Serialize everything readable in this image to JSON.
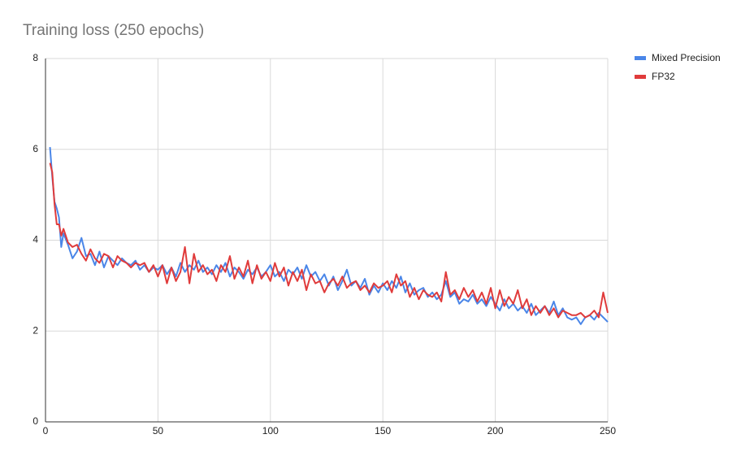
{
  "chart_data": {
    "type": "line",
    "title": "Training loss (250 epochs)",
    "x": [
      2,
      3,
      4,
      5,
      6,
      7,
      8,
      10,
      12,
      14,
      16,
      18,
      20,
      22,
      24,
      26,
      28,
      30,
      32,
      34,
      36,
      38,
      40,
      42,
      44,
      46,
      48,
      50,
      52,
      54,
      56,
      58,
      60,
      62,
      64,
      66,
      68,
      70,
      72,
      74,
      76,
      78,
      80,
      82,
      84,
      86,
      88,
      90,
      92,
      94,
      96,
      98,
      100,
      102,
      104,
      106,
      108,
      110,
      112,
      114,
      116,
      118,
      120,
      122,
      124,
      126,
      128,
      130,
      132,
      134,
      136,
      138,
      140,
      142,
      144,
      146,
      148,
      150,
      152,
      154,
      156,
      158,
      160,
      162,
      164,
      166,
      168,
      170,
      172,
      174,
      176,
      178,
      180,
      182,
      184,
      186,
      188,
      190,
      192,
      194,
      196,
      198,
      200,
      202,
      204,
      206,
      208,
      210,
      212,
      214,
      216,
      218,
      220,
      222,
      224,
      226,
      228,
      230,
      232,
      234,
      236,
      238,
      240,
      242,
      244,
      246,
      248,
      250
    ],
    "series": [
      {
        "name": "Mixed Precision",
        "color": "#4a86e8",
        "values": [
          6.05,
          5.4,
          4.85,
          4.7,
          4.5,
          3.85,
          4.15,
          3.9,
          3.6,
          3.75,
          4.05,
          3.65,
          3.7,
          3.45,
          3.75,
          3.4,
          3.65,
          3.55,
          3.45,
          3.6,
          3.5,
          3.45,
          3.55,
          3.35,
          3.45,
          3.3,
          3.4,
          3.35,
          3.45,
          3.25,
          3.4,
          3.2,
          3.5,
          3.3,
          3.45,
          3.35,
          3.55,
          3.3,
          3.4,
          3.25,
          3.45,
          3.3,
          3.5,
          3.2,
          3.4,
          3.3,
          3.15,
          3.35,
          3.25,
          3.4,
          3.2,
          3.3,
          3.45,
          3.2,
          3.3,
          3.1,
          3.35,
          3.25,
          3.4,
          3.15,
          3.45,
          3.2,
          3.3,
          3.1,
          3.25,
          3.0,
          3.2,
          2.9,
          3.1,
          3.35,
          3.0,
          3.1,
          2.95,
          3.15,
          2.8,
          3.0,
          2.85,
          3.05,
          2.9,
          3.1,
          2.95,
          3.2,
          2.85,
          3.05,
          2.8,
          2.9,
          2.95,
          2.75,
          2.85,
          2.7,
          2.8,
          3.1,
          2.75,
          2.85,
          2.6,
          2.7,
          2.65,
          2.8,
          2.6,
          2.7,
          2.55,
          2.75,
          2.6,
          2.45,
          2.7,
          2.5,
          2.6,
          2.45,
          2.55,
          2.4,
          2.6,
          2.35,
          2.45,
          2.55,
          2.4,
          2.65,
          2.35,
          2.5,
          2.3,
          2.25,
          2.3,
          2.15,
          2.3,
          2.35,
          2.25,
          2.4,
          2.3,
          2.2
        ]
      },
      {
        "name": "FP32",
        "color": "#e03b3b",
        "values": [
          5.7,
          5.5,
          4.8,
          4.35,
          4.35,
          4.1,
          4.25,
          3.95,
          3.85,
          3.9,
          3.7,
          3.55,
          3.8,
          3.6,
          3.5,
          3.7,
          3.65,
          3.4,
          3.65,
          3.55,
          3.5,
          3.4,
          3.5,
          3.45,
          3.5,
          3.3,
          3.45,
          3.2,
          3.45,
          3.05,
          3.4,
          3.1,
          3.3,
          3.85,
          3.05,
          3.7,
          3.3,
          3.45,
          3.25,
          3.35,
          3.1,
          3.45,
          3.3,
          3.65,
          3.15,
          3.4,
          3.2,
          3.55,
          3.05,
          3.45,
          3.15,
          3.3,
          3.1,
          3.5,
          3.2,
          3.4,
          3.0,
          3.3,
          3.1,
          3.35,
          2.9,
          3.25,
          3.05,
          3.1,
          2.85,
          3.05,
          3.15,
          3.0,
          3.2,
          2.95,
          3.05,
          3.1,
          2.9,
          3.0,
          2.85,
          3.05,
          2.95,
          3.0,
          3.1,
          2.85,
          3.25,
          3.0,
          3.1,
          2.75,
          2.95,
          2.7,
          2.9,
          2.8,
          2.75,
          2.85,
          2.65,
          3.3,
          2.8,
          2.9,
          2.7,
          2.95,
          2.75,
          2.9,
          2.65,
          2.85,
          2.6,
          2.95,
          2.5,
          2.9,
          2.55,
          2.75,
          2.6,
          2.9,
          2.5,
          2.7,
          2.35,
          2.55,
          2.4,
          2.55,
          2.35,
          2.5,
          2.3,
          2.45,
          2.4,
          2.35,
          2.35,
          2.4,
          2.3,
          2.35,
          2.45,
          2.3,
          2.85,
          2.4
        ]
      }
    ],
    "xlim": [
      0,
      250
    ],
    "xticks": [
      0,
      50,
      100,
      150,
      200,
      250
    ],
    "ylim": [
      0,
      8
    ],
    "yticks": [
      0,
      2,
      4,
      6,
      8
    ],
    "grid": true,
    "legend": "right"
  }
}
